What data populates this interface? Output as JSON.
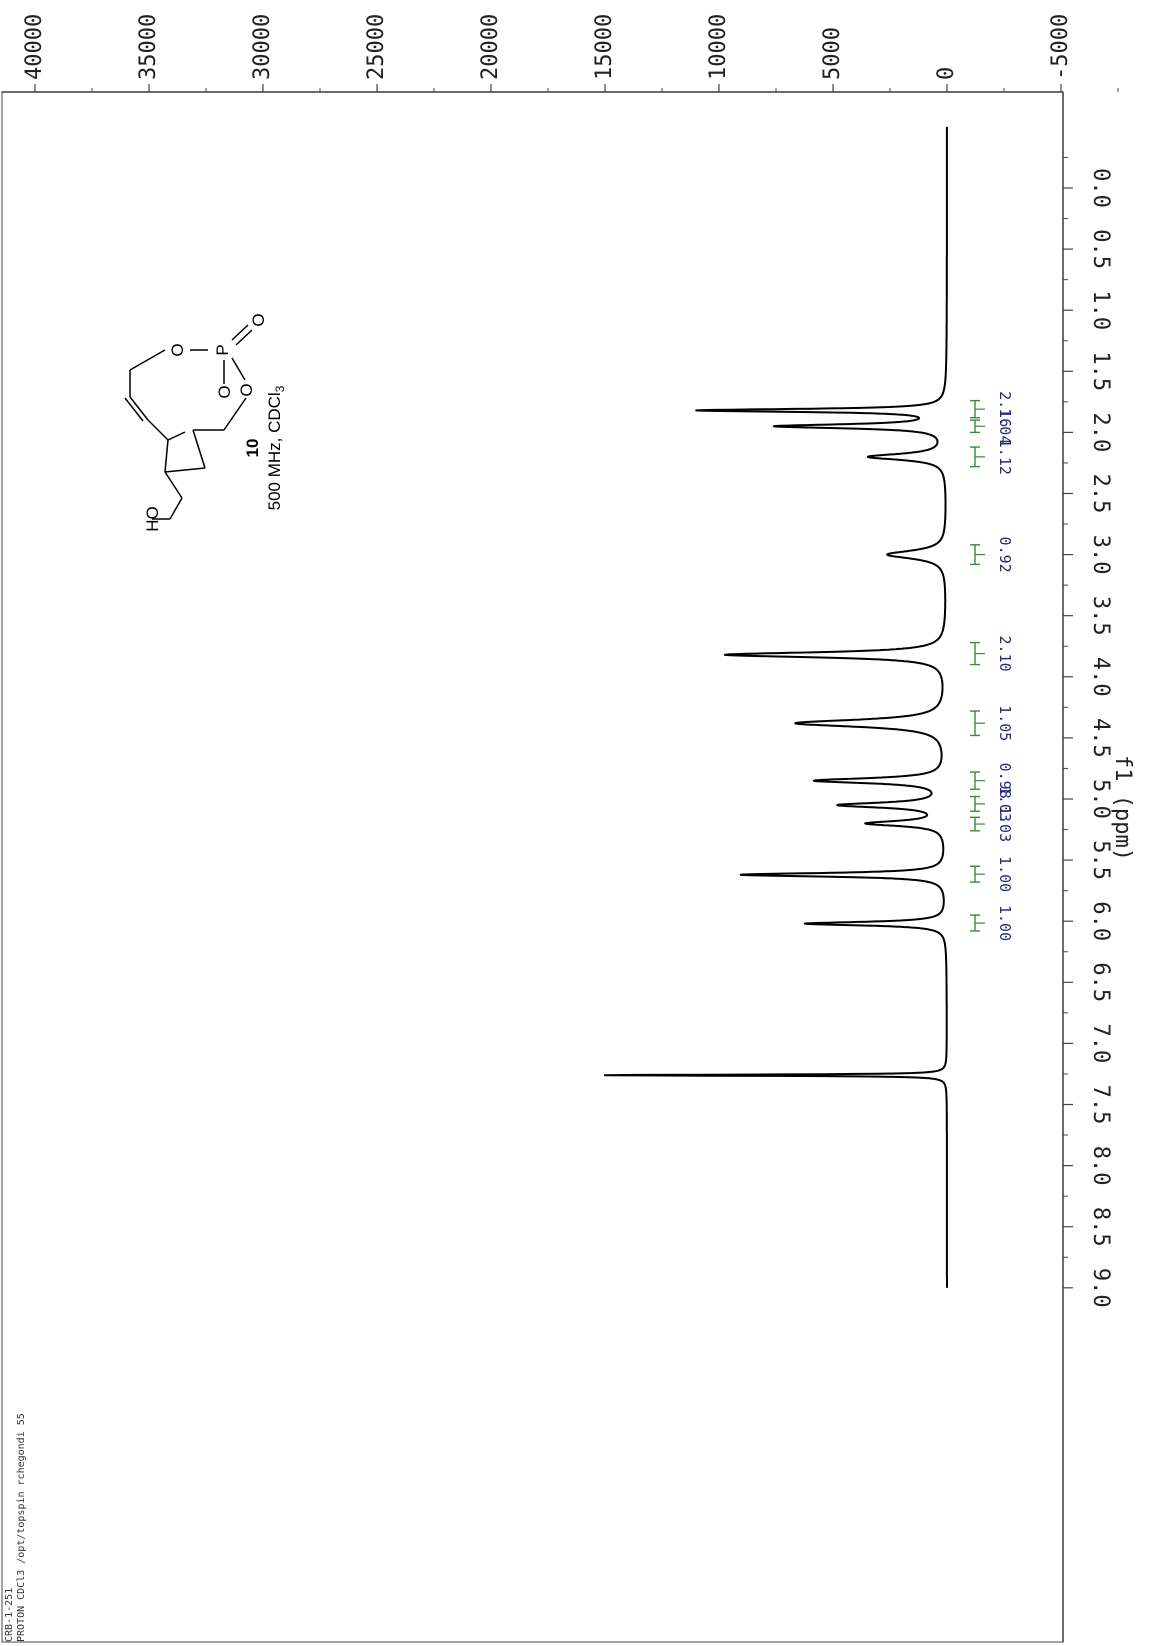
{
  "metadata": {
    "line1": "CRB-1-251",
    "line2": "PROTON CDCl3 /opt/topspin rchegondi 55"
  },
  "compound": {
    "number": "10",
    "conditions": "500 MHz, CDCl",
    "conditions_subscript": "3",
    "atoms": {
      "ho": "HO",
      "o_ring": "O",
      "p": "P",
      "o_double": "O",
      "o_bridge1": "O",
      "o_bridge2": "O"
    }
  },
  "colors": {
    "spectrum": "#000000",
    "integral": "#3a8a3a",
    "integral_value": "#2a2a7a",
    "axis": "#444444"
  },
  "chart_data": {
    "type": "line",
    "title": "",
    "xlabel": "f1 (ppm)",
    "ylabel": "",
    "xlim": [
      -0.5,
      9.0
    ],
    "ylim": [
      -7000,
      79000
    ],
    "x_reversed": true,
    "x_ticks": [
      "0.0",
      "0.5",
      "1.0",
      "1.5",
      "2.0",
      "2.5",
      "3.0",
      "3.5",
      "4.0",
      "4.5",
      "5.0",
      "5.5",
      "6.0",
      "6.5",
      "7.0",
      "7.5",
      "8.0",
      "8.5",
      "9.0"
    ],
    "y_ticks": [
      "-5000",
      "0",
      "5000",
      "10000",
      "15000",
      "20000",
      "25000",
      "30000",
      "35000",
      "40000",
      "45000",
      "50000",
      "55000",
      "60000",
      "65000",
      "70000",
      "75000"
    ],
    "series": [
      {
        "peaks": [
          {
            "ppm": 7.26,
            "height": 15000,
            "width": 0.006
          },
          {
            "ppm": 6.02,
            "height": 6200,
            "width": 0.018
          },
          {
            "ppm": 5.62,
            "height": 9000,
            "width": 0.018
          },
          {
            "ppm": 5.2,
            "height": 3400,
            "width": 0.025
          },
          {
            "ppm": 5.05,
            "height": 4600,
            "width": 0.025
          },
          {
            "ppm": 4.85,
            "height": 5700,
            "width": 0.025
          },
          {
            "ppm": 4.38,
            "height": 6600,
            "width": 0.035
          },
          {
            "ppm": 3.82,
            "height": 9700,
            "width": 0.025
          },
          {
            "ppm": 3.0,
            "height": 2600,
            "width": 0.04
          },
          {
            "ppm": 2.2,
            "height": 3400,
            "width": 0.03
          },
          {
            "ppm": 1.95,
            "height": 7400,
            "width": 0.02
          },
          {
            "ppm": 1.82,
            "height": 10800,
            "width": 0.015
          }
        ]
      }
    ],
    "integrals": [
      {
        "value": "1.00",
        "from": 5.95,
        "to": 6.08
      },
      {
        "value": "1.00",
        "from": 5.55,
        "to": 5.68
      },
      {
        "value": "1.03",
        "from": 5.15,
        "to": 5.26
      },
      {
        "value": "1.03",
        "from": 4.98,
        "to": 5.1
      },
      {
        "value": "0.98",
        "from": 4.78,
        "to": 4.92
      },
      {
        "value": "1.05",
        "from": 4.28,
        "to": 4.48
      },
      {
        "value": "2.10",
        "from": 3.72,
        "to": 3.9
      },
      {
        "value": "0.92",
        "from": 2.92,
        "to": 3.08
      },
      {
        "value": "1.12",
        "from": 2.12,
        "to": 2.28
      },
      {
        "value": "1.04",
        "from": 1.9,
        "to": 2.0
      },
      {
        "value": "2.16",
        "from": 1.74,
        "to": 1.88
      }
    ]
  }
}
